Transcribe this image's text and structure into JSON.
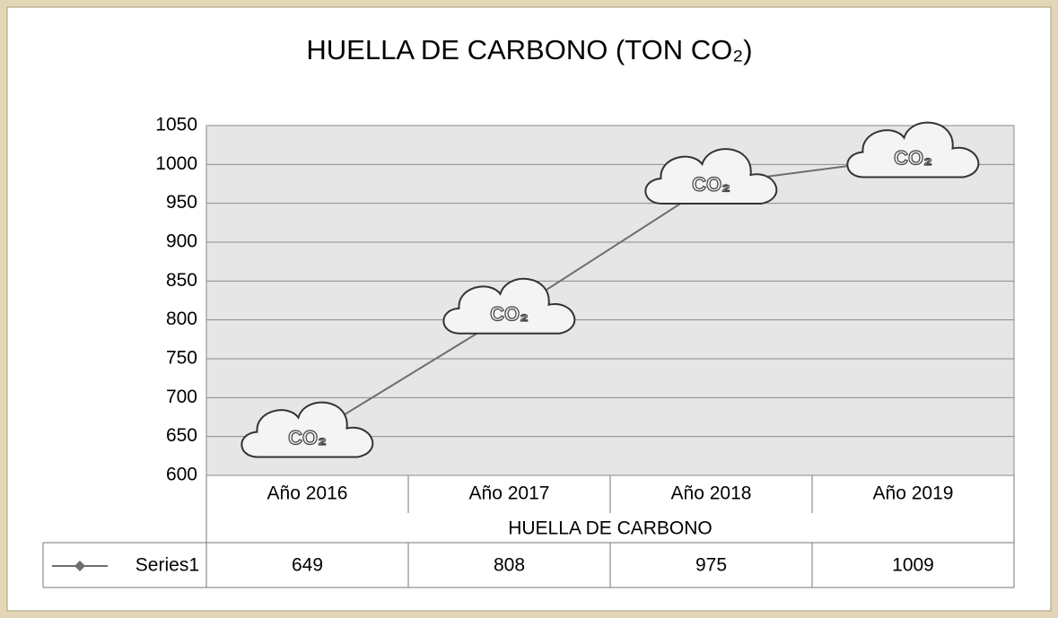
{
  "chart_data": {
    "type": "line",
    "title": "HUELLA DE CARBONO (TON CO₂)",
    "categories": [
      "Año 2016",
      "Año 2017",
      "Año 2018",
      "Año 2019"
    ],
    "category_group": "HUELLA DE CARBONO",
    "marker_label": "CO₂",
    "series": [
      {
        "name": "Series1",
        "color": "#6e6e6e",
        "values": [
          649,
          808,
          975,
          1009
        ]
      }
    ],
    "ylim": [
      600,
      1050
    ],
    "yticks": [
      600,
      650,
      700,
      750,
      800,
      850,
      900,
      950,
      1000,
      1050
    ],
    "grid": true
  }
}
